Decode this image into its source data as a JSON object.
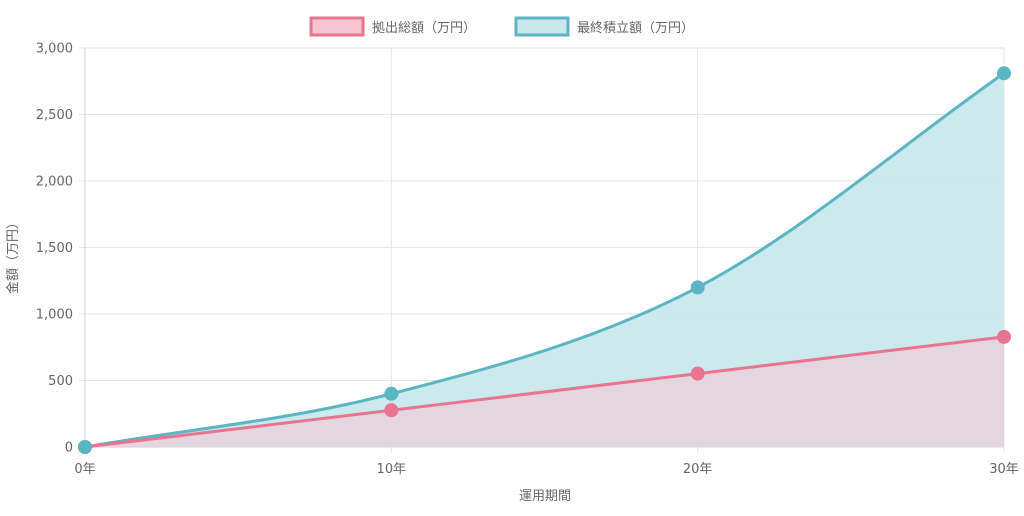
{
  "chart_data": {
    "type": "area",
    "xlabel": "運用期間",
    "ylabel": "金額（万円）",
    "categories": [
      "0年",
      "10年",
      "20年",
      "30年"
    ],
    "x": [
      0,
      10,
      20,
      30
    ],
    "ylim": [
      0,
      3000
    ],
    "yticks": [
      0,
      500,
      1000,
      1500,
      2000,
      2500,
      3000
    ],
    "ytick_labels": [
      "0",
      "500",
      "1,000",
      "1,500",
      "2,000",
      "2,500",
      "3,000"
    ],
    "grid": true,
    "legend_position": "top",
    "series": [
      {
        "name": "拠出総額（万円）",
        "values": [
          0,
          276,
          552,
          828
        ],
        "line_color": "#e8748f",
        "fill_color": "#f5c6d1"
      },
      {
        "name": "最終積立額（万円）",
        "values": [
          0,
          400,
          1200,
          2810
        ],
        "line_color": "#5bb5c3",
        "fill_color": "#c9e8ec"
      }
    ]
  }
}
